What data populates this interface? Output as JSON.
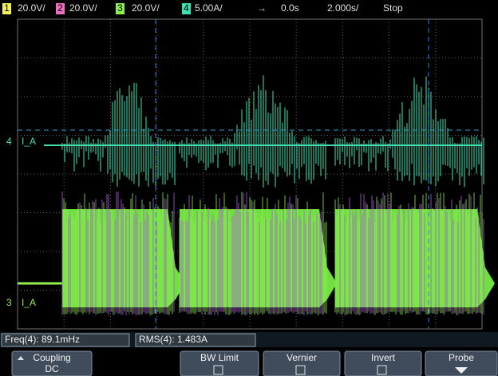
{
  "header": {
    "channels": [
      {
        "number": "1",
        "scale": "20.0V/"
      },
      {
        "number": "2",
        "scale": "20.0V/"
      },
      {
        "number": "3",
        "scale": "20.0V/"
      },
      {
        "number": "4",
        "scale": "5.00A/"
      }
    ],
    "arrow": "→",
    "delay": "0.0s",
    "timebase": "2.000s/",
    "status": "Stop"
  },
  "screen": {
    "labels": [
      {
        "channel": "4",
        "name": "I_A"
      },
      {
        "channel": "3",
        "name": "I_A"
      }
    ]
  },
  "measurements": [
    "Freq(4): 89.1mHz",
    "RMS(4): 1.483A"
  ],
  "softkeys": [
    {
      "label": "Coupling",
      "value": "DC"
    },
    {
      "label": "BW Limit"
    },
    {
      "label": "Vernier"
    },
    {
      "label": "Invert"
    },
    {
      "label": "Probe"
    }
  ]
}
